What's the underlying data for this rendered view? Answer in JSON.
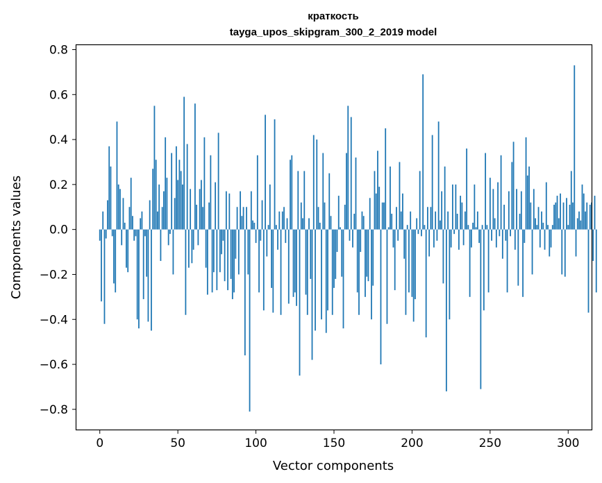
{
  "chart_data": {
    "type": "bar",
    "title": "краткость",
    "subtitle": "tayga_upos_skipgram_300_2_2019 model",
    "xlabel": "Vector components",
    "ylabel": "Components values",
    "xlim": [
      -15,
      315
    ],
    "ylim": [
      -0.89,
      0.82
    ],
    "xticks": [
      0,
      50,
      100,
      150,
      200,
      250,
      300
    ],
    "yticks": [
      -0.8,
      -0.6,
      -0.4,
      -0.2,
      0.0,
      0.2,
      0.4,
      0.6,
      0.8
    ],
    "ytick_labels": [
      "−0.8",
      "−0.6",
      "−0.4",
      "−0.2",
      "0.0",
      "0.2",
      "0.4",
      "0.6",
      "0.8"
    ],
    "grid": false,
    "color": "#1f77b4",
    "values": [
      -0.05,
      -0.32,
      0.08,
      -0.42,
      -0.04,
      0.13,
      0.37,
      0.28,
      -0.03,
      -0.24,
      -0.28,
      0.48,
      0.2,
      0.18,
      -0.07,
      0.14,
      0.03,
      -0.17,
      -0.19,
      0.1,
      0.23,
      0.06,
      -0.05,
      -0.03,
      -0.4,
      -0.44,
      0.05,
      0.08,
      -0.31,
      -0.03,
      -0.21,
      -0.41,
      0.13,
      -0.45,
      0.27,
      0.55,
      0.31,
      0.08,
      0.2,
      -0.14,
      0.1,
      0.17,
      0.41,
      0.23,
      -0.07,
      -0.02,
      0.34,
      -0.2,
      0.14,
      0.37,
      0.22,
      0.31,
      0.26,
      0.2,
      0.59,
      -0.38,
      0.38,
      -0.17,
      0.18,
      -0.15,
      -0.09,
      0.56,
      0.11,
      -0.07,
      0.18,
      0.22,
      0.1,
      0.41,
      -0.17,
      -0.29,
      0.12,
      0.33,
      -0.28,
      -0.19,
      0.21,
      -0.27,
      0.43,
      -0.19,
      -0.11,
      -0.05,
      -0.23,
      0.17,
      -0.27,
      0.16,
      -0.22,
      -0.31,
      -0.28,
      -0.13,
      0.1,
      -0.2,
      0.17,
      0.06,
      0.1,
      -0.56,
      0.1,
      -0.2,
      -0.81,
      0.17,
      0.04,
      0.03,
      -0.06,
      0.33,
      -0.28,
      -0.05,
      0.13,
      -0.36,
      0.51,
      -0.12,
      0.02,
      0.2,
      -0.26,
      -0.37,
      0.49,
      0.02,
      -0.09,
      0.08,
      -0.38,
      0.08,
      0.1,
      -0.06,
      0.05,
      -0.33,
      0.31,
      0.33,
      -0.3,
      -0.28,
      -0.34,
      0.26,
      -0.65,
      0.12,
      0.05,
      0.26,
      -0.29,
      -0.38,
      0.05,
      -0.22,
      -0.58,
      0.42,
      -0.45,
      0.4,
      0.1,
      0.03,
      -0.4,
      0.34,
      0.12,
      -0.46,
      -0.36,
      0.25,
      0.06,
      -0.38,
      -0.26,
      -0.22,
      -0.1,
      0.15,
      0.01,
      -0.21,
      -0.44,
      0.11,
      0.34,
      0.55,
      -0.05,
      0.5,
      -0.08,
      0.07,
      0.32,
      -0.28,
      -0.38,
      -0.1,
      0.08,
      0.06,
      -0.3,
      -0.21,
      -0.23,
      0.14,
      -0.4,
      -0.25,
      0.26,
      0.16,
      0.35,
      0.19,
      -0.6,
      0.12,
      0.12,
      0.45,
      -0.42,
      0.01,
      0.28,
      0.07,
      -0.08,
      -0.27,
      0.1,
      -0.05,
      0.3,
      0.08,
      0.16,
      -0.13,
      -0.38,
      0.02,
      -0.28,
      0.08,
      -0.3,
      -0.41,
      -0.31,
      0.05,
      -0.02,
      0.26,
      -0.03,
      0.69,
      0.02,
      -0.48,
      0.1,
      -0.12,
      0.1,
      0.42,
      -0.08,
      0.08,
      -0.05,
      0.48,
      0.04,
      0.17,
      -0.24,
      0.28,
      -0.72,
      0.08,
      -0.4,
      -0.08,
      0.2,
      -0.02,
      0.2,
      0.07,
      -0.09,
      0.15,
      0.12,
      -0.07,
      0.08,
      0.36,
      0.02,
      -0.3,
      -0.08,
      0.03,
      0.2,
      0.01,
      0.08,
      -0.06,
      -0.71,
      0.02,
      -0.36,
      0.34,
      0.02,
      -0.28,
      0.23,
      -0.05,
      0.18,
      0.05,
      -0.08,
      0.21,
      -0.03,
      0.33,
      -0.13,
      0.11,
      -0.05,
      -0.28,
      0.17,
      -0.03,
      0.3,
      0.39,
      -0.09,
      0.18,
      -0.25,
      0.07,
      0.17,
      -0.3,
      -0.06,
      0.41,
      0.24,
      0.28,
      0.12,
      -0.2,
      0.18,
      0.05,
      0.02,
      0.1,
      -0.08,
      0.08,
      0.03,
      -0.09,
      0.21,
      0.02,
      -0.12,
      -0.08,
      0.02,
      0.11,
      0.12,
      0.15,
      0.05,
      0.16,
      -0.2,
      0.12,
      -0.21,
      0.14,
      0.02,
      0.11,
      0.26,
      0.12,
      0.73,
      -0.12,
      0.05,
      0.08,
      0.04,
      0.2,
      0.16,
      0.08,
      0.12,
      -0.37,
      0.11,
      0.12,
      -0.14,
      0.15,
      -0.28
    ]
  }
}
